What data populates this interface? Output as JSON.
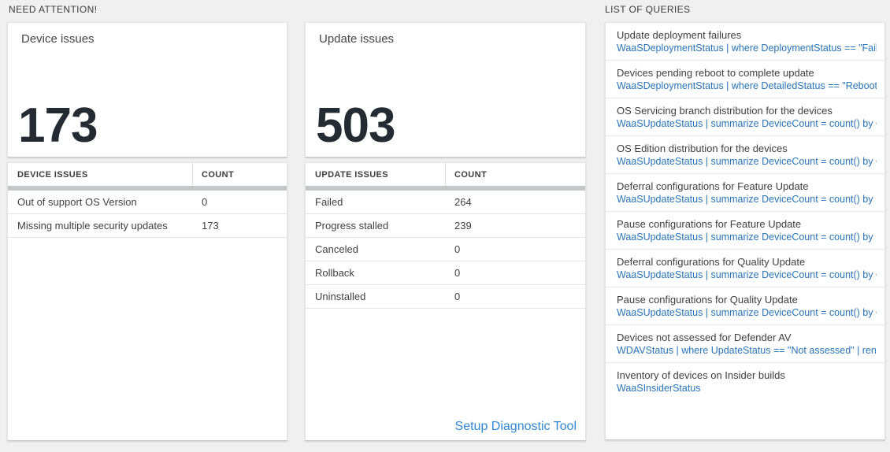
{
  "colors": {
    "page_background": "#f0f0f0",
    "card_background": "#ffffff",
    "big_number_text": "#252b32",
    "query_link_blue": "#2a74b8",
    "setup_link_blue": "#3088d4",
    "table_header_bar": "#c3c7c9"
  },
  "sections": {
    "need_attention": "NEED ATTENTION!",
    "list_of_queries": "LIST OF QUERIES"
  },
  "device_card": {
    "title": "Device issues",
    "count": "173"
  },
  "device_table": {
    "columns": {
      "issues": "DEVICE ISSUES",
      "count": "COUNT"
    },
    "rows": [
      {
        "label": "Out of support OS Version",
        "count": "0"
      },
      {
        "label": "Missing multiple security updates",
        "count": "173"
      }
    ]
  },
  "update_card": {
    "title": "Update issues",
    "count": "503"
  },
  "update_table": {
    "columns": {
      "issues": "UPDATE ISSUES",
      "count": "COUNT"
    },
    "rows": [
      {
        "label": "Failed",
        "count": "264"
      },
      {
        "label": "Progress stalled",
        "count": "239"
      },
      {
        "label": "Canceled",
        "count": "0"
      },
      {
        "label": "Rollback",
        "count": "0"
      },
      {
        "label": "Uninstalled",
        "count": "0"
      }
    ],
    "footer_link": "Setup Diagnostic Tool"
  },
  "queries": {
    "items": [
      {
        "title": "Update deployment failures",
        "query": "WaaSDeploymentStatus | where DeploymentStatus == \"Failed\" |..."
      },
      {
        "title": "Devices pending reboot to complete update",
        "query": "WaaSDeploymentStatus | where DetailedStatus == \"Reboot pend..."
      },
      {
        "title": "OS Servicing branch distribution for the devices",
        "query": "WaaSUpdateStatus | summarize DeviceCount = count() by OSSer..."
      },
      {
        "title": "OS Edition distribution for the devices",
        "query": "WaaSUpdateStatus | summarize DeviceCount = count() by OSEdit..."
      },
      {
        "title": "Deferral configurations for Feature Update",
        "query": "WaaSUpdateStatus | summarize DeviceCount = count() by Featur..."
      },
      {
        "title": "Pause configurations for Feature Update",
        "query": "WaaSUpdateStatus | summarize DeviceCount = count() by Featur..."
      },
      {
        "title": "Deferral configurations for Quality Update",
        "query": "WaaSUpdateStatus | summarize DeviceCount = count() by Qualit..."
      },
      {
        "title": "Pause configurations for Quality Update",
        "query": "WaaSUpdateStatus | summarize DeviceCount = count() by Qualit..."
      },
      {
        "title": "Devices not assessed for Defender AV",
        "query": "WDAVStatus | where UpdateStatus == \"Not assessed\" | render ta..."
      },
      {
        "title": "Inventory of devices on Insider builds",
        "query": "WaaSInsiderStatus"
      }
    ]
  }
}
